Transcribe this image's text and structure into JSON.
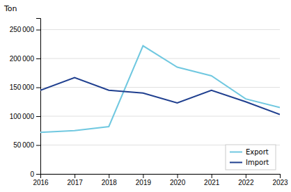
{
  "chart_data": {
    "type": "line",
    "ylabel": "Ton",
    "x": [
      2016,
      2017,
      2018,
      2019,
      2020,
      2021,
      2022,
      2023
    ],
    "series": [
      {
        "name": "Export",
        "color": "#70C8E0",
        "values": [
          72000,
          75000,
          82000,
          222000,
          185000,
          170000,
          130000,
          115000
        ]
      },
      {
        "name": "Import",
        "color": "#1F3F8F",
        "values": [
          145000,
          167000,
          145000,
          140000,
          123000,
          145000,
          125000,
          103000
        ]
      }
    ],
    "xlim": [
      2016,
      2023
    ],
    "xticks": [
      2016,
      2017,
      2018,
      2019,
      2020,
      2021,
      2022,
      2023
    ],
    "ylim": [
      0,
      270000
    ],
    "yticks": [
      0,
      {
        "value": 50000,
        "label": "50 000"
      },
      {
        "value": 100000,
        "label": "100 000"
      },
      {
        "value": 150000,
        "label": "150 000"
      },
      {
        "value": 200000,
        "label": "200 000"
      },
      {
        "value": 250000,
        "label": "250 000"
      }
    ],
    "grid": true,
    "legend": "lower-right"
  }
}
